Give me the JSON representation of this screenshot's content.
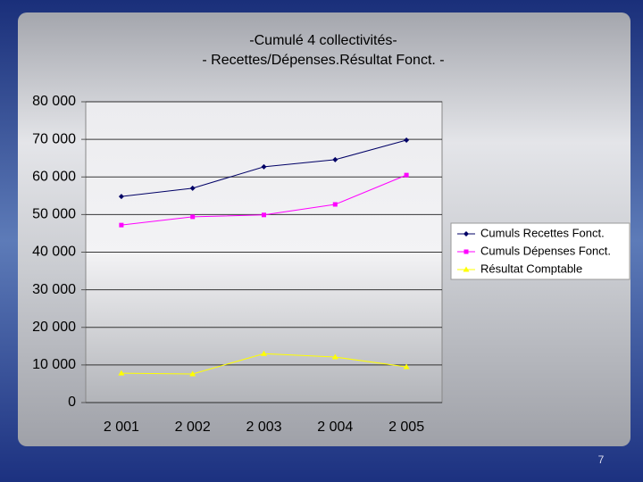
{
  "chart_data": {
    "type": "line",
    "title": "-Cumulé 4 collectivités-",
    "subtitle": "- Recettes/Dépenses.Résultat Fonct. -",
    "categories": [
      "2 001",
      "2 002",
      "2 003",
      "2 004",
      "2 005"
    ],
    "series": [
      {
        "name": "Cumuls Recettes  Fonct.",
        "color": "#000066",
        "marker": "diamond",
        "values": [
          54800,
          57000,
          62700,
          64600,
          69800
        ]
      },
      {
        "name": "Cumuls Dépenses Fonct.",
        "color": "#ff00ff",
        "marker": "square",
        "values": [
          47200,
          49400,
          49900,
          52700,
          60500
        ]
      },
      {
        "name": "Résultat Comptable",
        "color": "#ffff00",
        "marker": "triangle",
        "values": [
          7800,
          7600,
          13000,
          12100,
          9500
        ]
      }
    ],
    "ylim": [
      0,
      80000
    ],
    "yticks": [
      0,
      {
        "value": 10000,
        "label": "10 000"
      },
      {
        "value": 20000,
        "label": "20 000"
      },
      {
        "value": 30000,
        "label": "30 000"
      },
      {
        "value": 40000,
        "label": "40 000"
      },
      {
        "value": 50000,
        "label": "50 000"
      },
      {
        "value": 60000,
        "label": "60 000"
      },
      {
        "value": 70000,
        "label": "70 000"
      },
      {
        "value": 80000,
        "label": "80 000"
      }
    ],
    "grid": true,
    "legend": "right"
  },
  "slide_number": "7"
}
